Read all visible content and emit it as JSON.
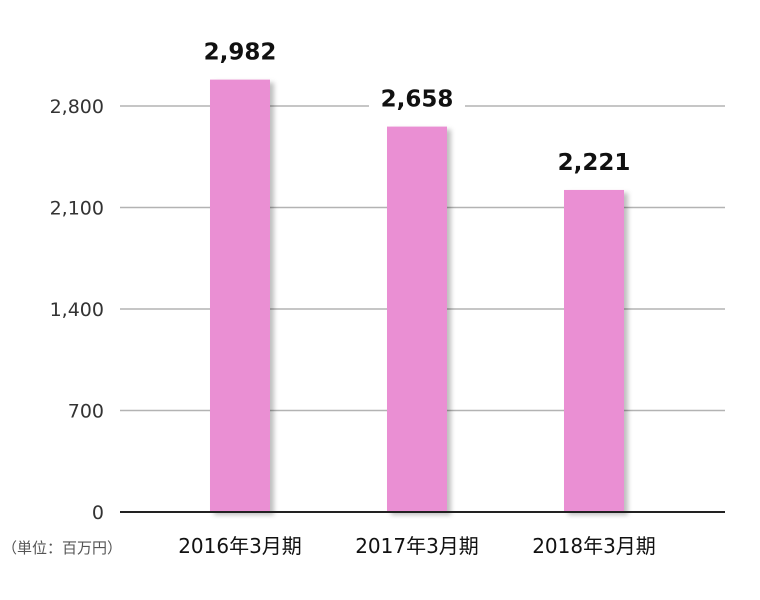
{
  "chart_data": {
    "type": "bar",
    "title": "",
    "unit": "（単位：百万円）",
    "categories": [
      "2016年3月期",
      "2017年3月期",
      "2018年3月期"
    ],
    "values": [
      2982,
      2658,
      2221
    ],
    "value_labels": [
      "2,982",
      "2,658",
      "2,221"
    ],
    "y_ticks": [
      0,
      700,
      1400,
      2100,
      2800
    ],
    "y_tick_labels": [
      "0",
      "700",
      "1,400",
      "2,100",
      "2,800"
    ],
    "ylim": [
      0,
      2800
    ],
    "grid": true,
    "bar_color": "#ea8fd3",
    "grid_color": "#b3b3b3",
    "axis_color": "#222222"
  }
}
